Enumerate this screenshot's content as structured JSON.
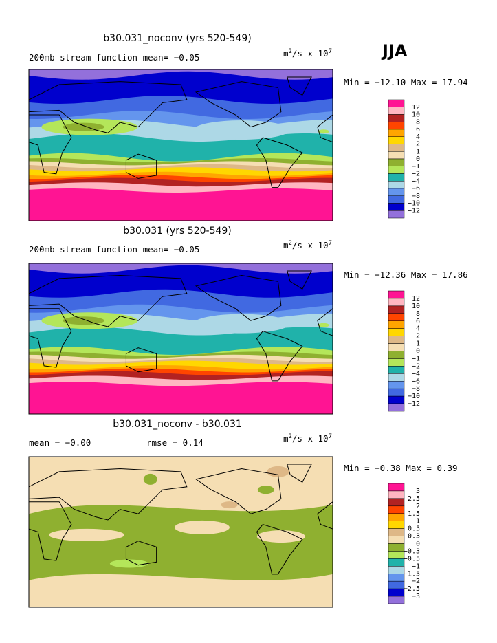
{
  "season": "JJA",
  "panels": [
    {
      "title": "b30.031_noconv (yrs 520-549)",
      "left": "200mb stream function  mean=  −0.05",
      "units": {
        "base": "m",
        "sup1": "2",
        "mid": "/s x 10",
        "sup2": "7"
      },
      "minmax": "Min = −12.10 Max =  17.94",
      "colorbar": [
        "12",
        "10",
        "8",
        "6",
        "4",
        "2",
        "1",
        "0",
        "−1",
        "−2",
        "−4",
        "−6",
        "−8",
        "−10",
        "−12"
      ]
    },
    {
      "title": "b30.031 (yrs 520-549)",
      "left": "200mb stream function  mean=  −0.05",
      "units": {
        "base": "m",
        "sup1": "2",
        "mid": "/s x 10",
        "sup2": "7"
      },
      "minmax": "Min = −12.36 Max =  17.86",
      "colorbar": [
        "12",
        "10",
        "8",
        "6",
        "4",
        "2",
        "1",
        "0",
        "−1",
        "−2",
        "−4",
        "−6",
        "−8",
        "−10",
        "−12"
      ]
    },
    {
      "title": "b30.031_noconv - b30.031",
      "left": "mean =  −0.00",
      "middle": "rmse =   0.14",
      "units": {
        "base": "m",
        "sup1": "2",
        "mid": "/s x 10",
        "sup2": "7"
      },
      "minmax": "Min =  −0.38 Max =   0.39",
      "colorbar": [
        "3",
        "2.5",
        "2",
        "1.5",
        "1",
        "0.5",
        "0.3",
        "0",
        "−0.3",
        "−0.5",
        "−1",
        "−1.5",
        "−2",
        "−2.5",
        "−3"
      ]
    }
  ],
  "colors": [
    "#ff1493",
    "#ffb6c1",
    "#b22222",
    "#ff4500",
    "#ffa500",
    "#ffd700",
    "#deb887",
    "#f5deb3",
    "#8fb030",
    "#b4e65a",
    "#20b2aa",
    "#add8e6",
    "#6495ed",
    "#4169e1",
    "#0000cd",
    "#9370db"
  ]
}
